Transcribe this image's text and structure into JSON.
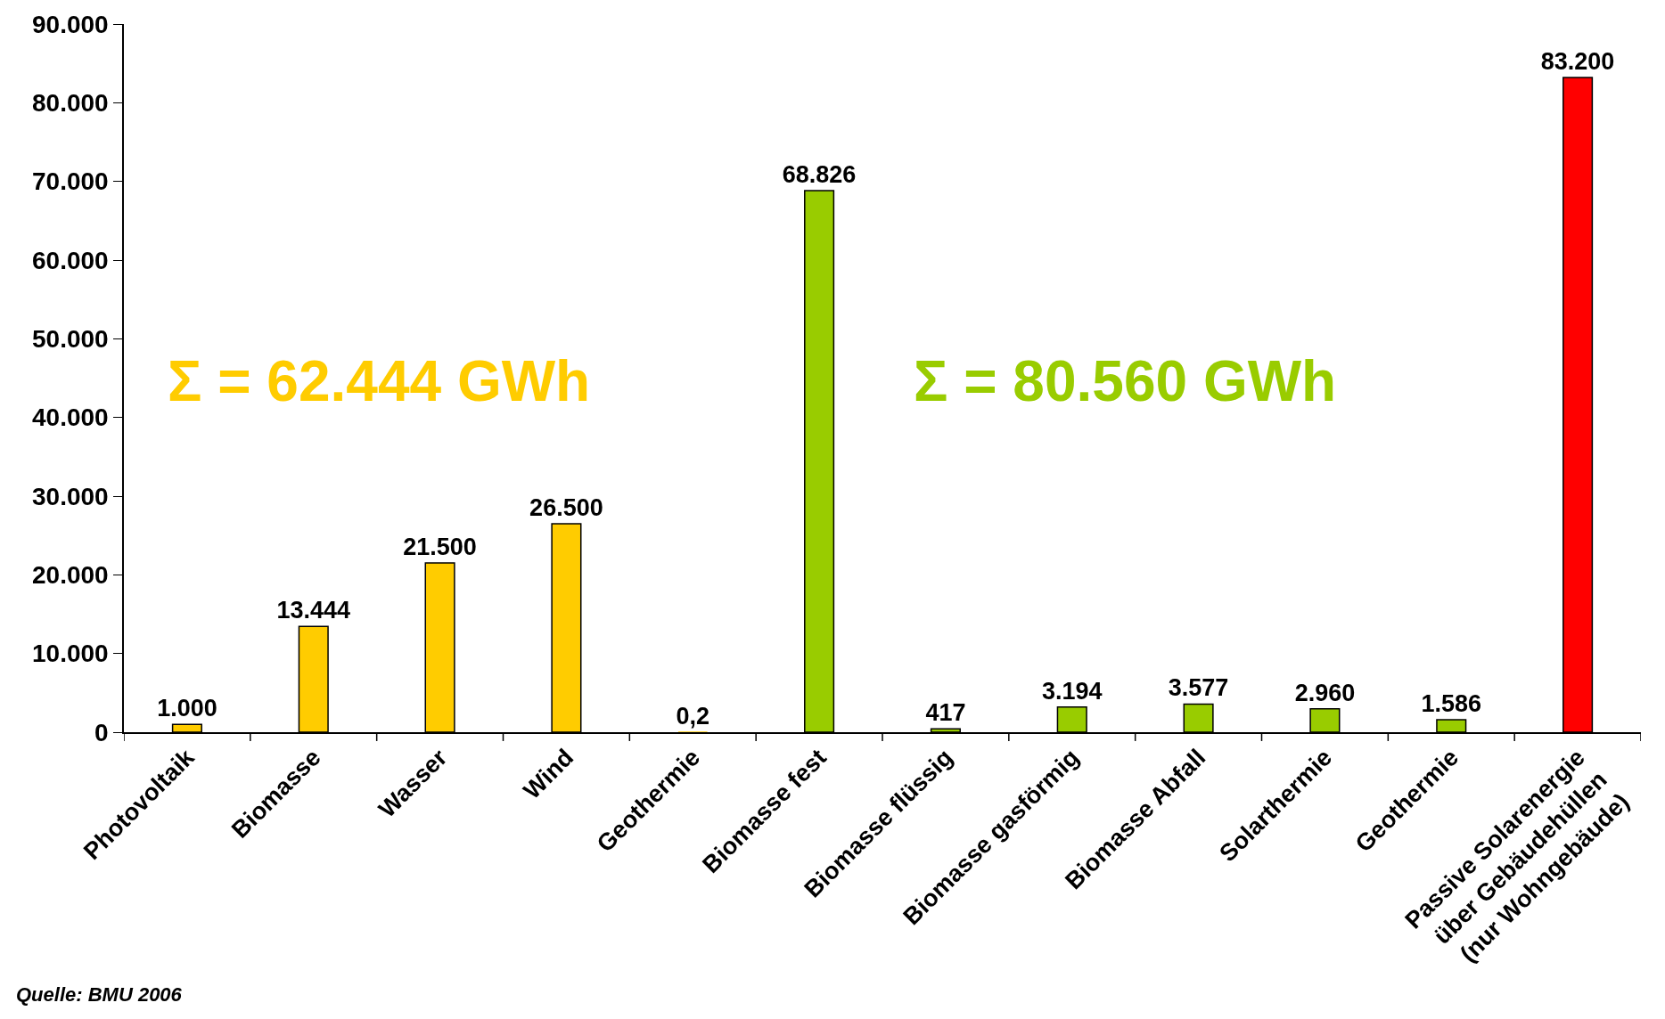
{
  "chart_data": {
    "type": "bar",
    "categories": [
      "Photovoltaik",
      "Biomasse",
      "Wasser",
      "Wind",
      "Geothermie",
      "Biomasse fest",
      "Biomasse flüssig",
      "Biomasse gasförmig",
      "Biomasse Abfall",
      "Solarthermie",
      "Geothermie",
      "Passive Solarenergie\nüber Gebäudehüllen\n(nur Wohngebäude)"
    ],
    "values": [
      1000,
      13444,
      21500,
      26500,
      0.2,
      68826,
      417,
      3194,
      3577,
      2960,
      1586,
      83200
    ],
    "colors": [
      "#ffcc00",
      "#ffcc00",
      "#ffcc00",
      "#ffcc00",
      "#ffcc00",
      "#99cc00",
      "#99cc00",
      "#99cc00",
      "#99cc00",
      "#99cc00",
      "#99cc00",
      "#ff0000"
    ],
    "value_labels": [
      "1.000",
      "13.444",
      "21.500",
      "26.500",
      "0,2",
      "68.826",
      "417",
      "3.194",
      "3.577",
      "2.960",
      "1.586",
      "83.200"
    ],
    "ylim": [
      0,
      90000
    ],
    "yticks": [
      0,
      {
        "value": 10000,
        "label": "10.000"
      },
      {
        "value": 20000,
        "label": "20.000"
      },
      {
        "value": 30000,
        "label": "30.000"
      },
      {
        "value": 40000,
        "label": "40.000"
      },
      {
        "value": 50000,
        "label": "50.000"
      },
      {
        "value": 60000,
        "label": "60.000"
      },
      {
        "value": 70000,
        "label": "70.000"
      },
      {
        "value": 80000,
        "label": "80.000"
      },
      {
        "value": 90000,
        "label": "90.000"
      }
    ],
    "annotations": [
      "Σ = 62.444 GWh",
      "Σ = 80.560 GWh",
      "Quelle: BMU 2006"
    ],
    "grid": false
  }
}
